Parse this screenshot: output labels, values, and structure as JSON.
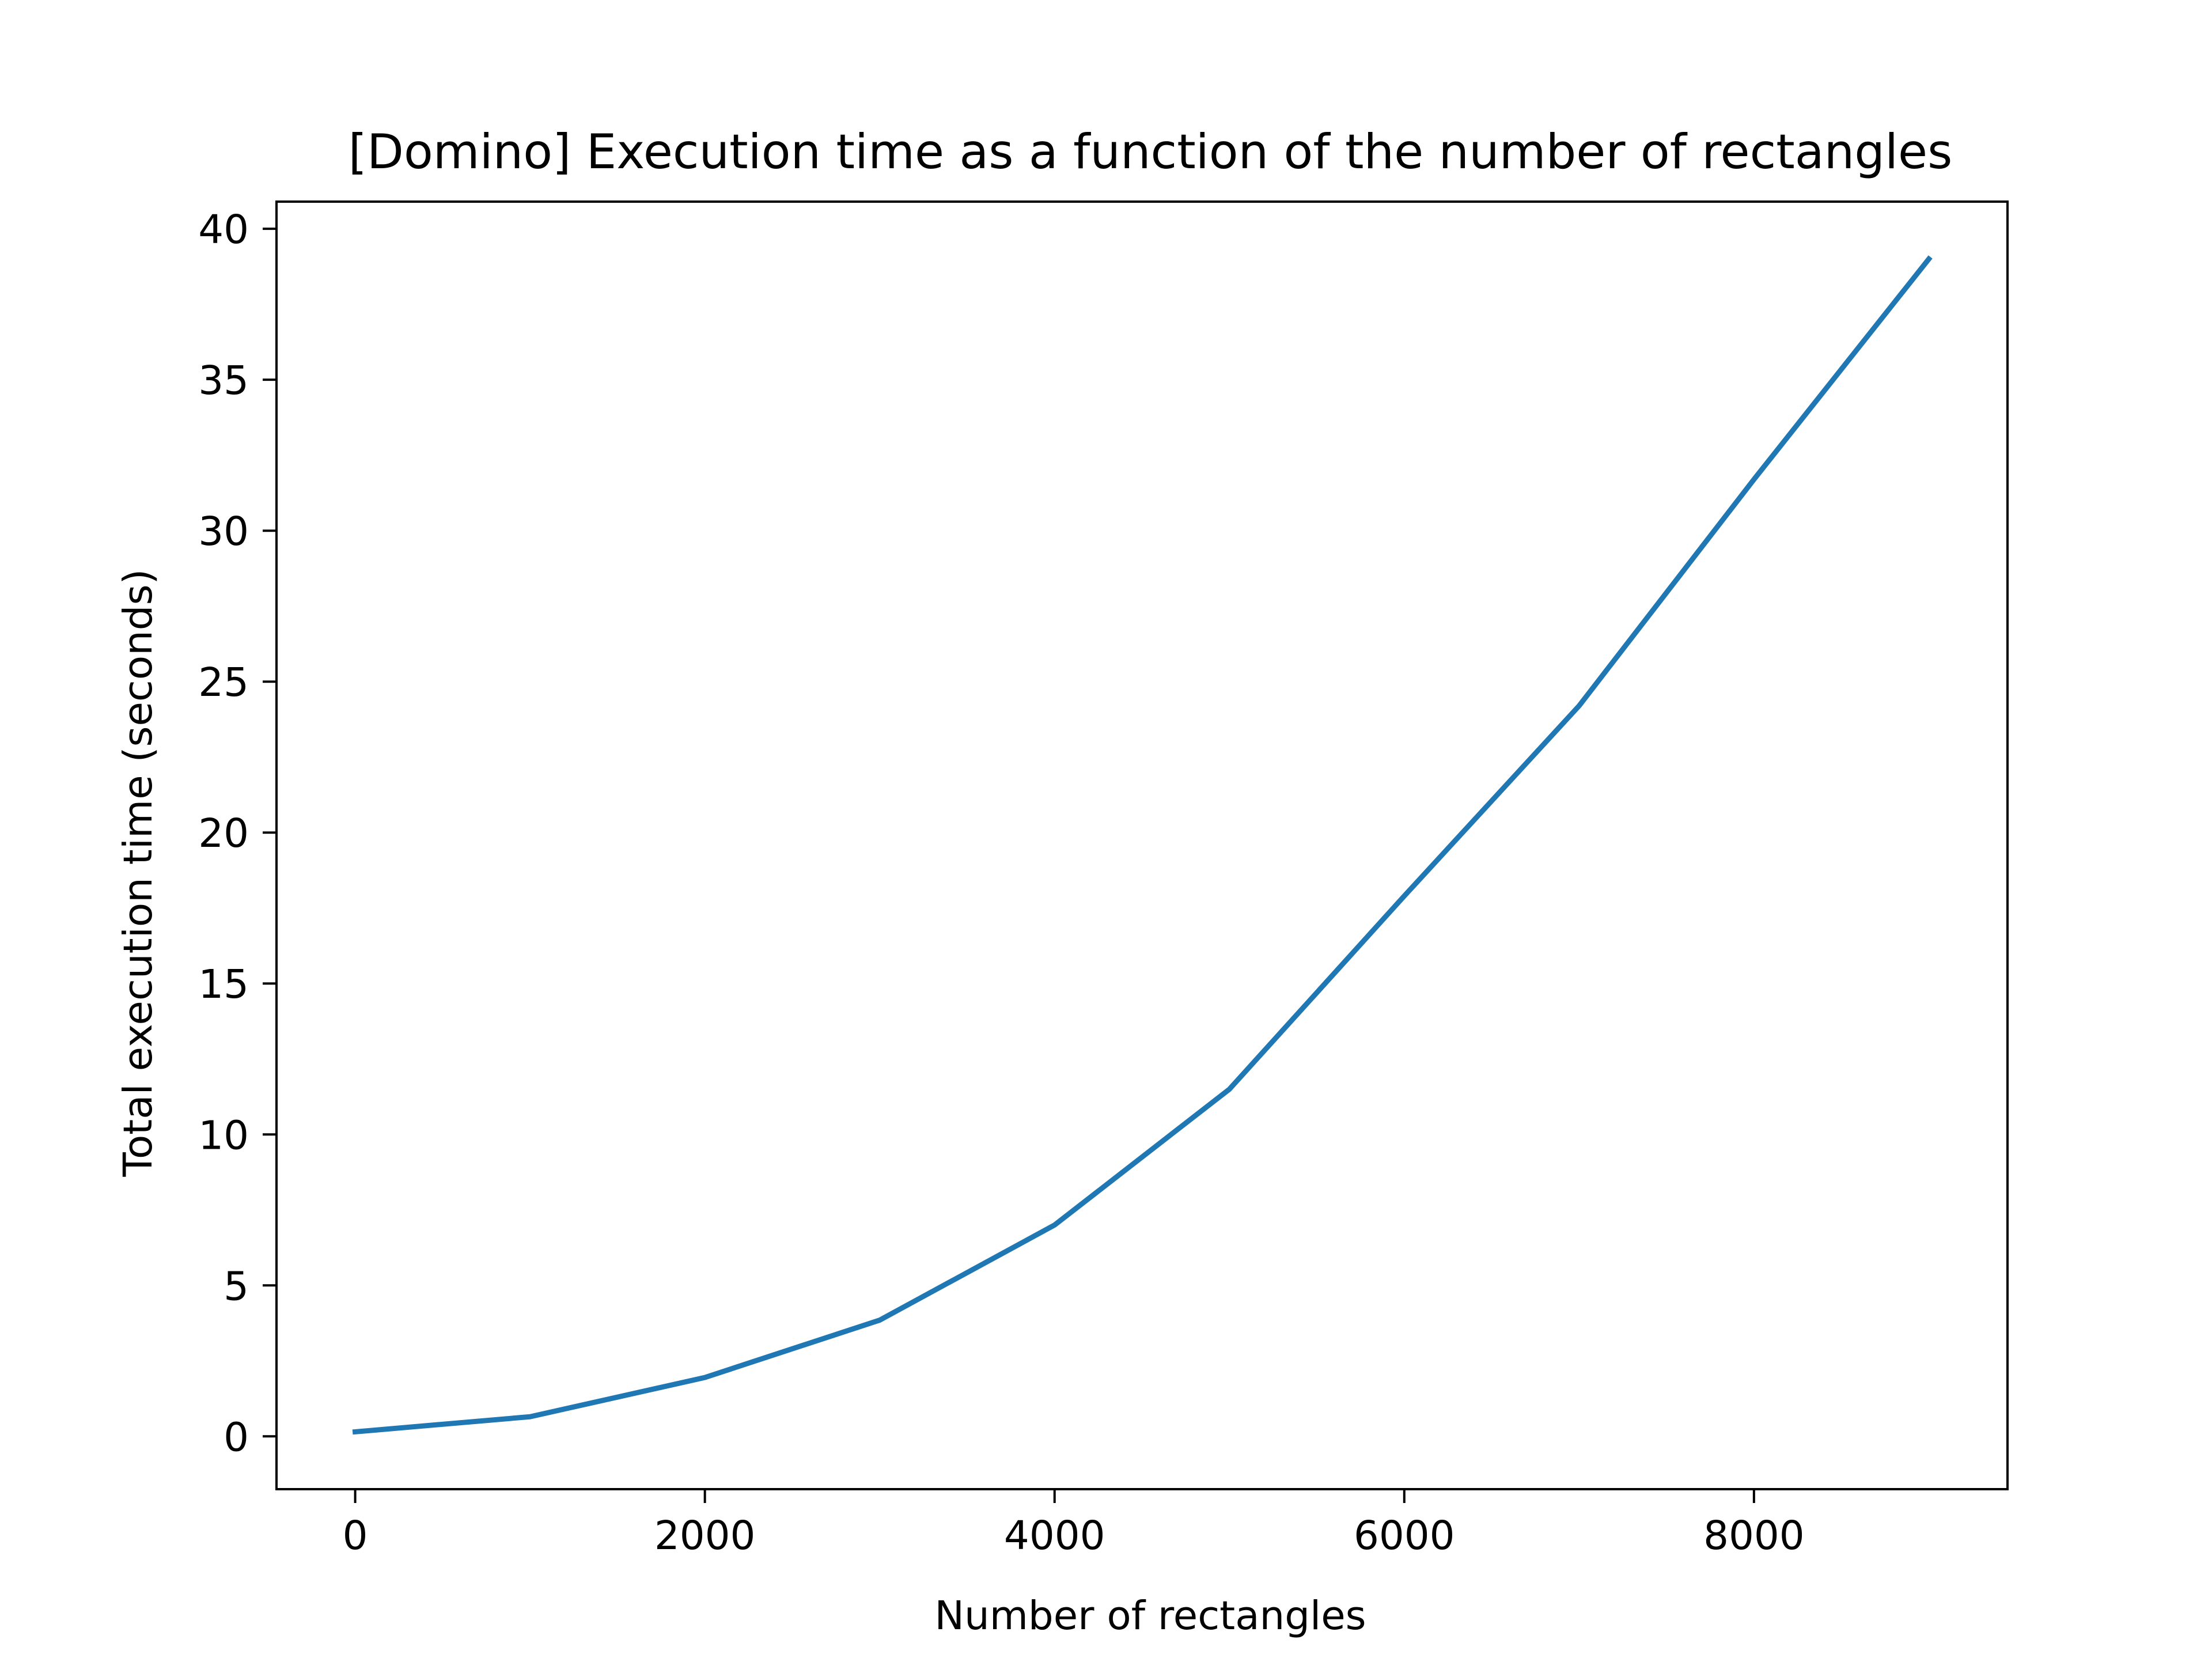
{
  "chart_data": {
    "type": "line",
    "title": "[Domino] Execution time as a function of the number of rectangles",
    "xlabel": "Number of rectangles",
    "ylabel": "Total execution time (seconds)",
    "xlim": [
      -450,
      9450
    ],
    "ylim": [
      -1.75,
      40.9
    ],
    "xticks": [
      0,
      2000,
      4000,
      6000,
      8000
    ],
    "yticks": [
      0,
      5,
      10,
      15,
      20,
      25,
      30,
      35,
      40
    ],
    "grid": false,
    "legend": "none",
    "series": [
      {
        "color": "#1f77b4",
        "x": [
          0,
          1000,
          2000,
          3000,
          4000,
          5000,
          6000,
          7000,
          8000,
          9000
        ],
        "y": [
          0.15,
          0.65,
          1.95,
          3.85,
          7.0,
          11.5,
          17.9,
          24.2,
          31.7,
          39.0
        ]
      }
    ]
  }
}
